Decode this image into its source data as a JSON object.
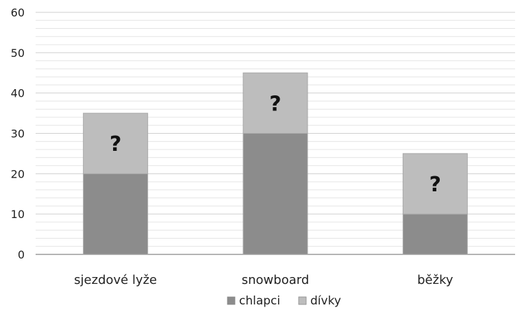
{
  "chart_data": {
    "type": "bar",
    "stacked": true,
    "categories": [
      "sjezdové lyže",
      "snowboard",
      "běžky"
    ],
    "series": [
      {
        "name": "chlapci",
        "values": [
          20,
          30,
          10
        ],
        "color": "#8c8c8c"
      },
      {
        "name": "dívky",
        "values": [
          15,
          15,
          15
        ],
        "color": "#bdbdbd",
        "segment_label": "?"
      }
    ],
    "totals": [
      35,
      45,
      25
    ],
    "ylim": [
      0,
      60
    ],
    "yticks": [
      0,
      10,
      20,
      30,
      40,
      50,
      60
    ],
    "grid": true,
    "legend": "bottom-center",
    "title": "",
    "xlabel": "",
    "ylabel": ""
  }
}
